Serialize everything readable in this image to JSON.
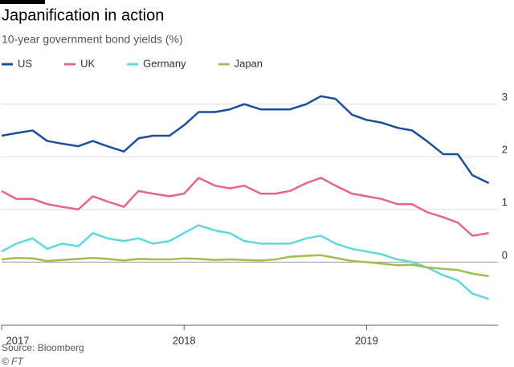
{
  "chart_data": {
    "type": "line",
    "title": "Japanification in action",
    "subtitle": "10-year government bond yields (%)",
    "source": "Source: Bloomberg",
    "credit": "© FT",
    "legend": "top-left",
    "grid": true,
    "xlim": [
      2017,
      2019.72
    ],
    "xticks": [
      2017,
      2018,
      2019
    ],
    "ylim": [
      -1.2,
      3.3
    ],
    "yticks": [
      0,
      1,
      2,
      3
    ],
    "x": [
      2017,
      2017.08,
      2017.17,
      2017.25,
      2017.33,
      2017.42,
      2017.5,
      2017.58,
      2017.67,
      2017.75,
      2017.83,
      2017.92,
      2018,
      2018.08,
      2018.17,
      2018.25,
      2018.33,
      2018.42,
      2018.5,
      2018.58,
      2018.67,
      2018.75,
      2018.83,
      2018.92,
      2019,
      2019.08,
      2019.17,
      2019.25,
      2019.33,
      2019.42,
      2019.5,
      2019.58,
      2019.67
    ],
    "series": [
      {
        "name": "US",
        "color": "#1a4f9c",
        "values": [
          2.4,
          2.45,
          2.5,
          2.3,
          2.25,
          2.2,
          2.3,
          2.2,
          2.1,
          2.35,
          2.4,
          2.4,
          2.6,
          2.85,
          2.85,
          2.9,
          3.0,
          2.9,
          2.9,
          2.9,
          3.0,
          3.15,
          3.1,
          2.8,
          2.7,
          2.65,
          2.55,
          2.5,
          2.3,
          2.05,
          2.05,
          1.65,
          1.5
        ]
      },
      {
        "name": "UK",
        "color": "#e8638f",
        "values": [
          1.35,
          1.2,
          1.2,
          1.1,
          1.05,
          1.0,
          1.25,
          1.15,
          1.05,
          1.35,
          1.3,
          1.25,
          1.3,
          1.6,
          1.45,
          1.4,
          1.45,
          1.3,
          1.3,
          1.35,
          1.5,
          1.6,
          1.45,
          1.3,
          1.25,
          1.2,
          1.1,
          1.1,
          0.95,
          0.85,
          0.75,
          0.5,
          0.55
        ]
      },
      {
        "name": "Germany",
        "color": "#5fd8e0",
        "values": [
          0.2,
          0.35,
          0.45,
          0.25,
          0.35,
          0.3,
          0.55,
          0.45,
          0.4,
          0.45,
          0.35,
          0.4,
          0.55,
          0.7,
          0.6,
          0.55,
          0.4,
          0.35,
          0.35,
          0.35,
          0.45,
          0.5,
          0.35,
          0.25,
          0.2,
          0.15,
          0.05,
          0.0,
          -0.1,
          -0.25,
          -0.35,
          -0.6,
          -0.7
        ]
      },
      {
        "name": "Japan",
        "color": "#9fbf4f",
        "values": [
          0.05,
          0.08,
          0.07,
          0.02,
          0.04,
          0.06,
          0.08,
          0.06,
          0.03,
          0.06,
          0.05,
          0.05,
          0.07,
          0.06,
          0.04,
          0.05,
          0.04,
          0.03,
          0.05,
          0.1,
          0.12,
          0.13,
          0.08,
          0.02,
          0.0,
          -0.03,
          -0.06,
          -0.05,
          -0.1,
          -0.13,
          -0.15,
          -0.22,
          -0.27
        ]
      }
    ]
  }
}
